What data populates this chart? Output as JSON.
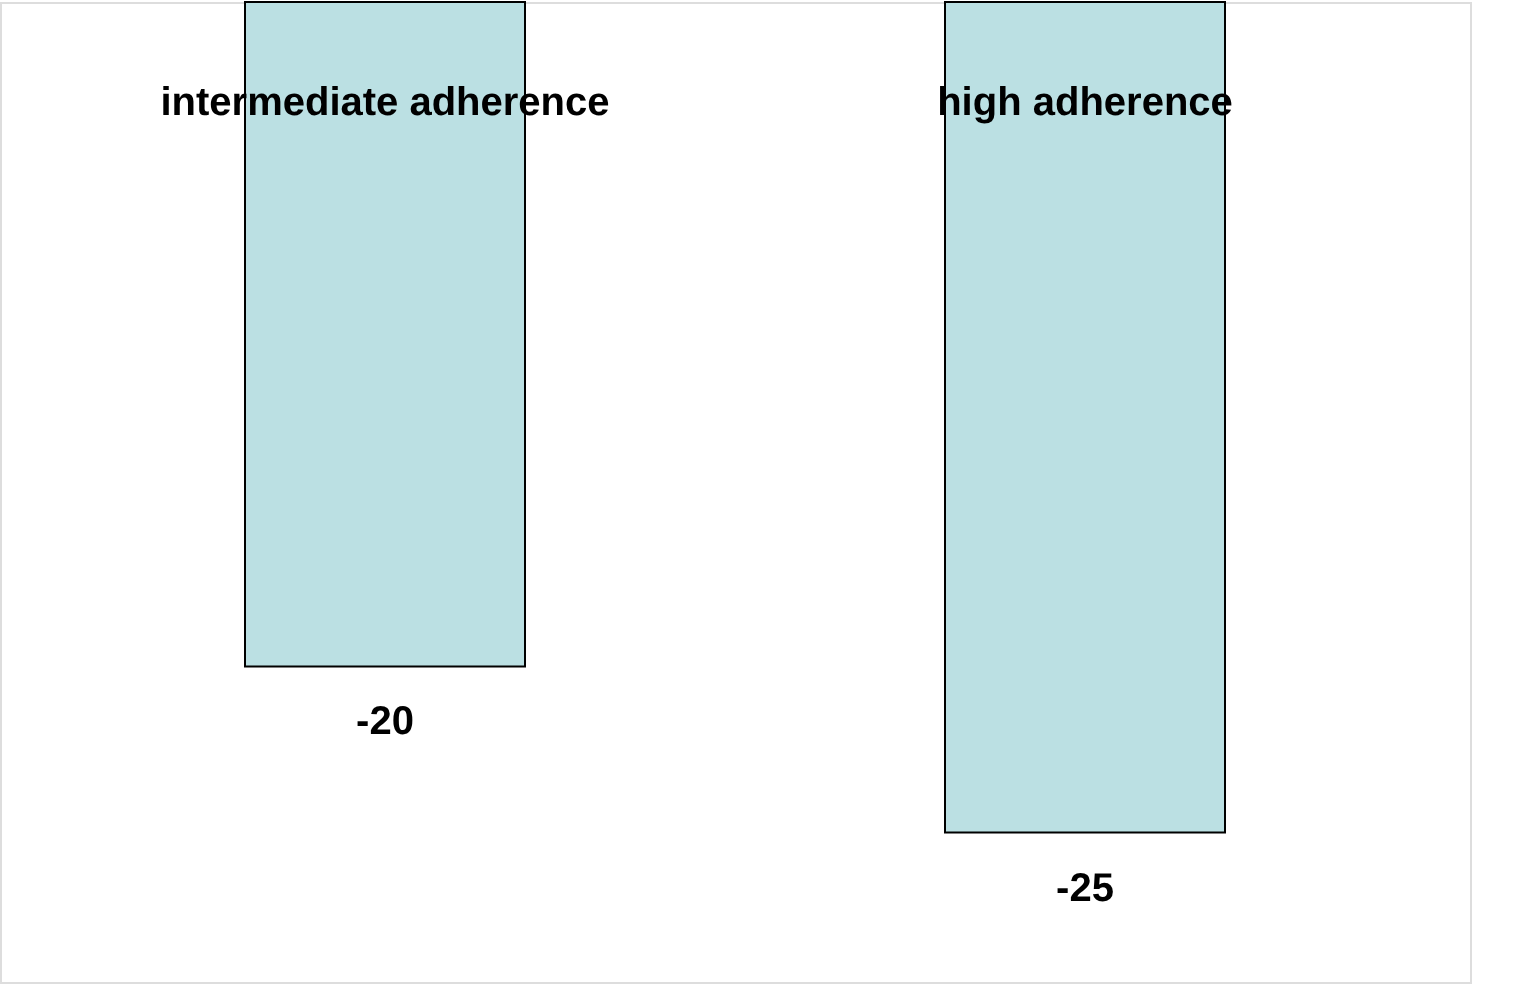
{
  "chart_data": {
    "type": "bar",
    "categories": [
      "intermediate adherence",
      "high adherence"
    ],
    "values": [
      -20,
      -25
    ],
    "color": "#bbe0e3",
    "data_labels": true,
    "grid": false,
    "tick_labels": "x"
  }
}
